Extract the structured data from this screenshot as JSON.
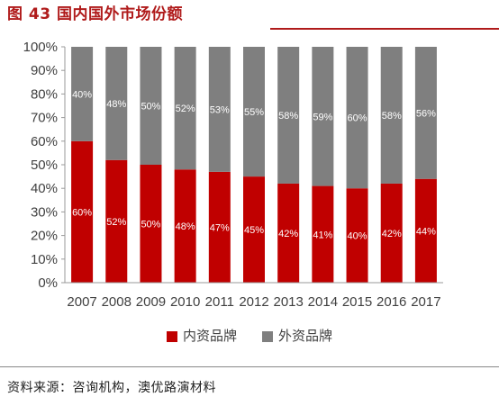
{
  "figure": {
    "title": "图 43  国内国外市场份额",
    "source": "资料来源：咨询机构，澳优路演材料"
  },
  "chart_data": {
    "type": "bar",
    "stacked": true,
    "categories": [
      "2007",
      "2008",
      "2009",
      "2010",
      "2011",
      "2012",
      "2013",
      "2014",
      "2015",
      "2016",
      "2017"
    ],
    "series": [
      {
        "name": "内资品牌",
        "color": "#c00000",
        "values": [
          60,
          52,
          50,
          48,
          47,
          45,
          42,
          41,
          40,
          42,
          44
        ]
      },
      {
        "name": "外资品牌",
        "color": "#7f7f7f",
        "values": [
          40,
          48,
          50,
          52,
          53,
          55,
          58,
          59,
          60,
          58,
          56
        ]
      }
    ],
    "data_labels": [
      [
        "60%",
        "52%",
        "50%",
        "48%",
        "47%",
        "45%",
        "42%",
        "41%",
        "40%",
        "42%",
        "44%"
      ],
      [
        "40%",
        "48%",
        "50%",
        "52%",
        "53%",
        "55%",
        "58%",
        "59%",
        "60%",
        "58%",
        "56%"
      ]
    ],
    "yticks": [
      "0%",
      "10%",
      "20%",
      "30%",
      "40%",
      "50%",
      "60%",
      "70%",
      "80%",
      "90%",
      "100%"
    ],
    "ylim": [
      0,
      100
    ],
    "grid": false,
    "legend": "bottom-center"
  }
}
